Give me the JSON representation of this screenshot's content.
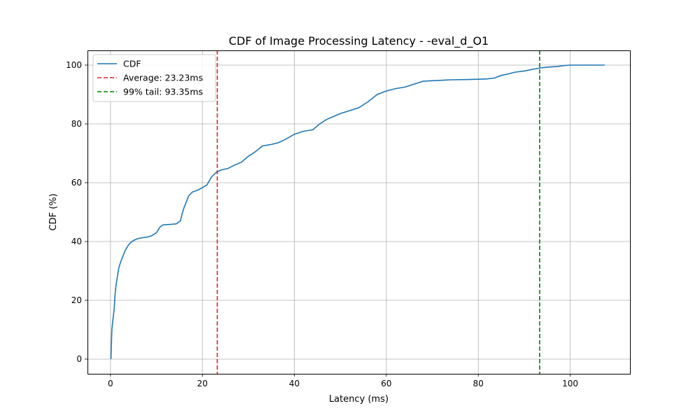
{
  "chart_data": {
    "type": "line",
    "title": "CDF of Image Processing Latency - -eval_d_O1",
    "xlabel": "Latency (ms)",
    "ylabel": "CDF (%)",
    "xlim": [
      -5,
      113
    ],
    "ylim": [
      -5,
      105
    ],
    "xticks": [
      0,
      20,
      40,
      60,
      80,
      100
    ],
    "yticks": [
      0,
      20,
      40,
      60,
      80,
      100
    ],
    "grid": true,
    "legend_position": "top-left",
    "series": [
      {
        "name": "CDF",
        "color": "#1f77b4",
        "x": [
          0.1,
          0.3,
          0.5,
          0.8,
          1.0,
          1.2,
          1.5,
          1.8,
          2.2,
          2.7,
          3.2,
          3.6,
          4.0,
          4.5,
          5.2,
          6.0,
          7.0,
          8.0,
          9.0,
          10.0,
          10.8,
          11.3,
          11.8,
          13.0,
          14.3,
          15.2,
          15.6,
          16.0,
          16.5,
          17.0,
          17.8,
          19.0,
          20.0,
          21.0,
          22.0,
          23.0,
          24.0,
          25.5,
          27.0,
          28.5,
          30.0,
          31.5,
          33.0,
          35.0,
          36.5,
          38.0,
          40.0,
          42.0,
          44.0,
          45.5,
          47.0,
          48.5,
          50.0,
          52.0,
          54.0,
          56.0,
          58.0,
          60.0,
          62.0,
          64.0,
          66.0,
          68.0,
          70.0,
          74.0,
          78.0,
          80.0,
          82.0,
          83.5,
          85.0,
          86.5,
          88.0,
          90.0,
          92.0,
          93.35,
          95.0,
          97.0,
          98.5,
          100.0,
          104.0,
          107.5
        ],
        "values": [
          0,
          10,
          13,
          17,
          22,
          25,
          28,
          31,
          33,
          35,
          37,
          38,
          39,
          39.8,
          40.5,
          41.0,
          41.3,
          41.5,
          42.0,
          43.0,
          45.0,
          45.6,
          45.7,
          45.8,
          46.0,
          47.0,
          49.5,
          51.5,
          53.5,
          55.5,
          56.8,
          57.5,
          58.3,
          59.3,
          62.0,
          63.5,
          64.3,
          64.8,
          66.0,
          67.0,
          69.0,
          70.5,
          72.5,
          73.0,
          73.6,
          74.7,
          76.5,
          77.5,
          78.0,
          80.0,
          81.5,
          82.5,
          83.5,
          84.5,
          85.5,
          87.5,
          90.0,
          91.2,
          92.0,
          92.5,
          93.5,
          94.5,
          94.7,
          95.0,
          95.1,
          95.2,
          95.3,
          95.6,
          96.5,
          97.0,
          97.6,
          98.0,
          98.6,
          99.0,
          99.3,
          99.5,
          99.8,
          100.0,
          100.0,
          100.0
        ]
      },
      {
        "name": "Average: 23.23ms",
        "color": "#d62728",
        "dashed": true,
        "vertical_line_x": 23.23
      },
      {
        "name": "99% tail: 93.35ms",
        "color": "#008000",
        "dashed": true,
        "vertical_line_x": 93.35
      }
    ]
  }
}
